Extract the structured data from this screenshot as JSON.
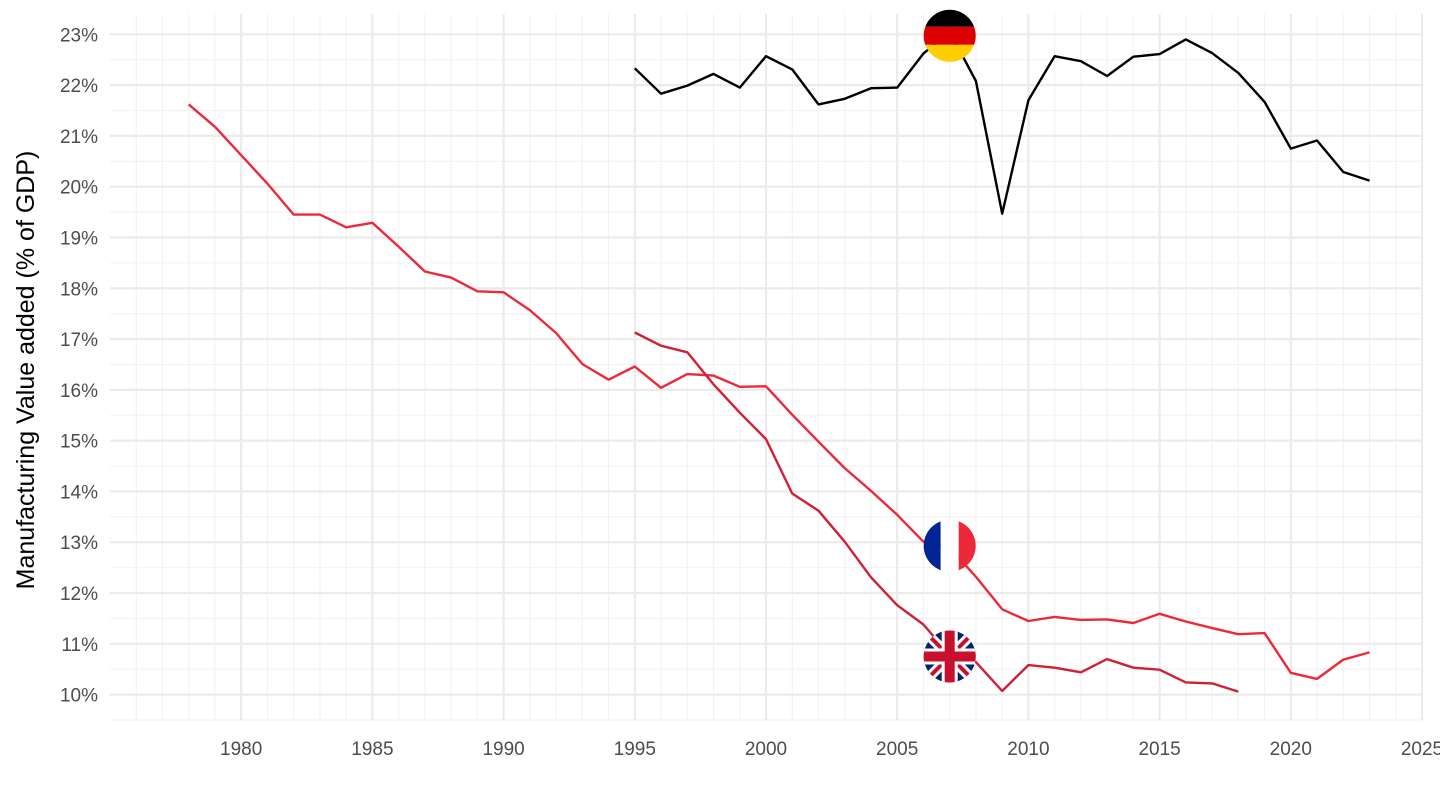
{
  "chart_data": {
    "type": "line",
    "title": "",
    "xlabel": "",
    "ylabel": "Manufacturing Value added (% of GDP)",
    "xlim": [
      1975,
      2025
    ],
    "ylim": [
      9.5,
      23.4
    ],
    "x_ticks": [
      1980,
      1985,
      1990,
      1995,
      2000,
      2005,
      2010,
      2015,
      2020,
      2025
    ],
    "x_tick_labels": [
      "1980",
      "1985",
      "1990",
      "1995",
      "2000",
      "2005",
      "2010",
      "2015",
      "2020",
      "2025"
    ],
    "y_ticks": [
      10,
      11,
      12,
      13,
      14,
      15,
      16,
      17,
      18,
      19,
      20,
      21,
      22,
      23
    ],
    "y_tick_labels": [
      "10%",
      "11%",
      "12%",
      "13%",
      "14%",
      "15%",
      "16%",
      "17%",
      "18%",
      "19%",
      "20%",
      "21%",
      "22%",
      "23%"
    ],
    "grid": true,
    "legend": "none (flag markers at 2007)",
    "series": [
      {
        "flag": "germany-flag",
        "color": "#000000",
        "x": [
          1995,
          1996,
          1997,
          1998,
          1999,
          2000,
          2001,
          2002,
          2003,
          2004,
          2005,
          2006,
          2007,
          2008,
          2009,
          2010,
          2011,
          2012,
          2013,
          2014,
          2015,
          2016,
          2017,
          2018,
          2019,
          2020,
          2021,
          2022,
          2023
        ],
        "values": [
          22.33,
          21.83,
          21.99,
          22.22,
          21.95,
          22.57,
          22.31,
          21.62,
          21.73,
          21.94,
          21.95,
          22.62,
          23.05,
          22.08,
          19.47,
          21.7,
          22.57,
          22.47,
          22.18,
          22.56,
          22.61,
          22.9,
          22.63,
          22.24,
          21.67,
          20.75,
          20.91,
          20.29,
          20.12
        ]
      },
      {
        "flag": "france-flag",
        "color": "#ed2939",
        "x": [
          1978,
          1979,
          1980,
          1981,
          1982,
          1983,
          1984,
          1985,
          1986,
          1987,
          1988,
          1989,
          1990,
          1991,
          1992,
          1993,
          1994,
          1995,
          1996,
          1997,
          1998,
          1999,
          2000,
          2001,
          2002,
          2003,
          2004,
          2005,
          2006,
          2007,
          2008,
          2009,
          2010,
          2011,
          2012,
          2013,
          2014,
          2015,
          2016,
          2017,
          2018,
          2019,
          2020,
          2021,
          2022,
          2023
        ],
        "values": [
          21.62,
          21.18,
          20.62,
          20.06,
          19.45,
          19.45,
          19.2,
          19.29,
          18.82,
          18.33,
          18.21,
          17.94,
          17.92,
          17.57,
          17.12,
          16.51,
          16.2,
          16.46,
          16.04,
          16.31,
          16.28,
          16.06,
          16.07,
          15.51,
          14.98,
          14.46,
          14.01,
          13.54,
          13.01,
          12.9,
          12.32,
          11.68,
          11.45,
          11.53,
          11.47,
          11.48,
          11.41,
          11.59,
          11.44,
          11.31,
          11.19,
          11.21,
          10.43,
          10.31,
          10.69,
          10.83
        ]
      },
      {
        "flag": "uk-flag",
        "color": "#cf2037",
        "x": [
          1995,
          1996,
          1997,
          1998,
          1999,
          2000,
          2001,
          2002,
          2003,
          2004,
          2005,
          2006,
          2007,
          2008,
          2009,
          2010,
          2011,
          2012,
          2013,
          2014,
          2015,
          2016,
          2017,
          2018
        ],
        "values": [
          17.13,
          16.87,
          16.74,
          16.11,
          15.55,
          15.03,
          13.96,
          13.62,
          13.01,
          12.31,
          11.76,
          11.38,
          10.78,
          10.64,
          10.07,
          10.58,
          10.53,
          10.44,
          10.7,
          10.53,
          10.49,
          10.24,
          10.22,
          10.06
        ]
      }
    ],
    "markers": [
      {
        "series": "germany-flag",
        "x": 2007,
        "y": 22.97
      },
      {
        "series": "france-flag",
        "x": 2007,
        "y": 12.93
      },
      {
        "series": "uk-flag",
        "x": 2007,
        "y": 10.75
      }
    ]
  }
}
